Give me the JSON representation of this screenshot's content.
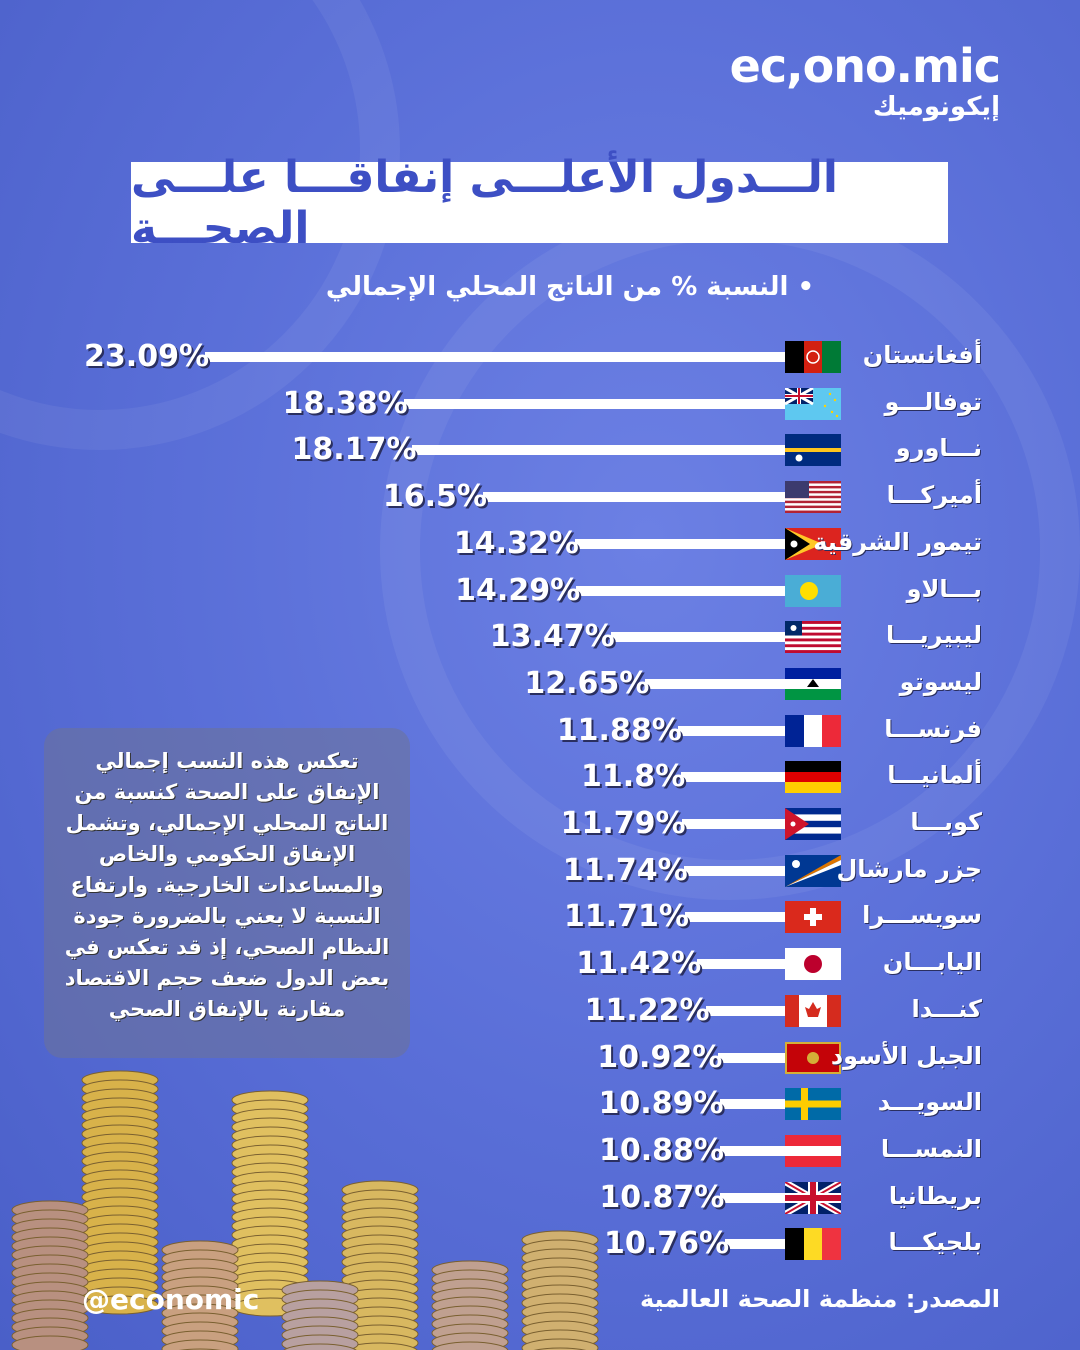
{
  "logo": {
    "en": "ec,ono.mic",
    "ar": "إيكونوميك"
  },
  "title": "الـــدول الأعلـــى إنفاقـــا علـــى الصحـــة",
  "subtitle": "• النسبة % من الناتج المحلي الإجمالي",
  "chart_data": {
    "type": "bar",
    "title": "الدول الأعلى إنفاقا على الصحة",
    "subtitle": "النسبة % من الناتج المحلي الإجمالي",
    "orientation": "horizontal",
    "categories": [
      "أفغانستان",
      "توفالـــو",
      "نـــاورو",
      "أميركـــا",
      "تيمور الشرقية",
      "بـــالاو",
      "ليبيريـــا",
      "ليسوتو",
      "فرنســـا",
      "ألمانيـــا",
      "كوبـــا",
      "جزر مارشال",
      "سويســـرا",
      "اليابـــان",
      "كنـــدا",
      "الجبل الأسود",
      "السويـــد",
      "النمســـا",
      "بريطانيا",
      "بلجيكـــا"
    ],
    "flags": [
      "af",
      "tv",
      "nr",
      "us",
      "tl",
      "pw",
      "lr",
      "ls",
      "fr",
      "de",
      "cu",
      "mh",
      "ch",
      "jp",
      "ca",
      "me",
      "se",
      "at",
      "gb",
      "be"
    ],
    "values": [
      23.09,
      18.38,
      18.17,
      16.5,
      14.32,
      14.29,
      13.47,
      12.65,
      11.88,
      11.8,
      11.79,
      11.74,
      11.71,
      11.42,
      11.22,
      10.92,
      10.89,
      10.88,
      10.87,
      10.76
    ],
    "labels": [
      "23.09%",
      "18.38%",
      "18.17%",
      "16.5%",
      "14.32%",
      "14.29%",
      "13.47%",
      "12.65%",
      "11.88%",
      "11.8%",
      "11.79%",
      "11.74%",
      "11.71%",
      "11.42%",
      "11.22%",
      "10.92%",
      "10.89%",
      "10.88%",
      "10.87%",
      "10.76%"
    ],
    "unit": "%"
  },
  "note": "تعكس هذه النسب إجمالي الإنفاق على الصحة كنسبة من الناتج المحلي الإجمالي، وتشمل الإنفاق الحكومي والخاص والمساعدات الخارجية. وارتفاع النسبة لا يعني بالضرورة جودة النظام الصحي، إذ قد تعكس في بعض الدول ضعف حجم الاقتصاد مقارنة بالإنفاق الصحي",
  "handle": "@economic",
  "source": "المصدر: منظمة الصحة العالمية",
  "colors": {
    "title": "#3d4fc4",
    "bar": "#ffffff"
  }
}
